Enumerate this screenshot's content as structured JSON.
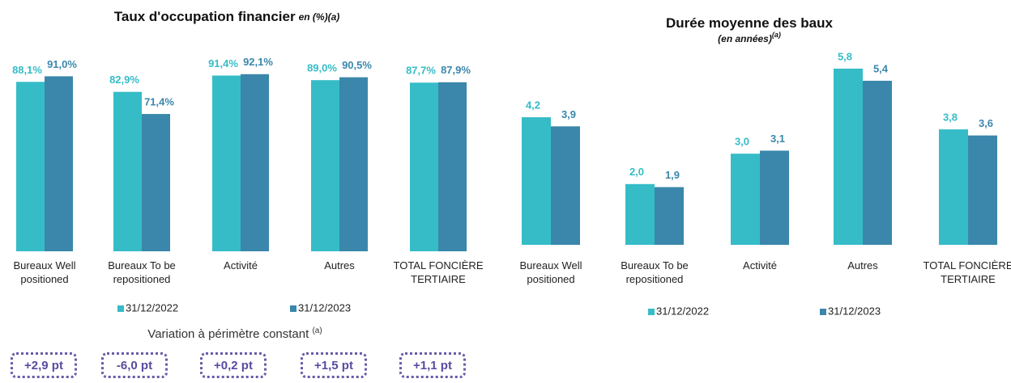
{
  "chart_data": [
    {
      "type": "bar",
      "title": "Taux d'occupation financier",
      "subtitle": "en (%)(a)",
      "categories": [
        "Bureaux Well\npositioned",
        "Bureaux To be\nrepositioned",
        "Activité",
        "Autres",
        "TOTAL FONCIÈRE\nTERTIAIRE"
      ],
      "series": [
        {
          "name": "31/12/2022",
          "color": "#35bcc7",
          "values": [
            88.1,
            82.9,
            91.4,
            89.0,
            87.7
          ],
          "value_labels": [
            "88,1%",
            "82,9%",
            "91,4%",
            "89,0%",
            "87,7%"
          ]
        },
        {
          "name": "31/12/2023",
          "color": "#3a87ab",
          "values": [
            91.0,
            71.4,
            92.1,
            90.5,
            87.9
          ],
          "value_labels": [
            "91,0%",
            "71,4%",
            "92,1%",
            "90,5%",
            "87,9%"
          ]
        }
      ]
    },
    {
      "type": "bar",
      "title": "Durée moyenne des baux",
      "subtitle": "(en années)",
      "subtitle_note": "(a)",
      "categories": [
        "Bureaux Well\npositioned",
        "Bureaux To be\nrepositioned",
        "Activité",
        "Autres",
        "TOTAL FONCIÈRE\nTERTIAIRE"
      ],
      "series": [
        {
          "name": "31/12/2022",
          "color": "#35bcc7",
          "values": [
            4.2,
            2.0,
            3.0,
            5.8,
            3.8
          ],
          "value_labels": [
            "4,2",
            "2,0",
            "3,0",
            "5,8",
            "3,8"
          ]
        },
        {
          "name": "31/12/2023",
          "color": "#3a87ab",
          "values": [
            3.9,
            1.9,
            3.1,
            5.4,
            3.6
          ],
          "value_labels": [
            "3,9",
            "1,9",
            "3,1",
            "5,4",
            "3,6"
          ]
        }
      ]
    }
  ],
  "variation": {
    "title": "Variation à périmètre constant",
    "note": "(a)",
    "values": [
      "+2,9 pt",
      "-6,0 pt",
      "+0,2 pt",
      "+1,5 pt",
      "+1,1 pt"
    ]
  }
}
